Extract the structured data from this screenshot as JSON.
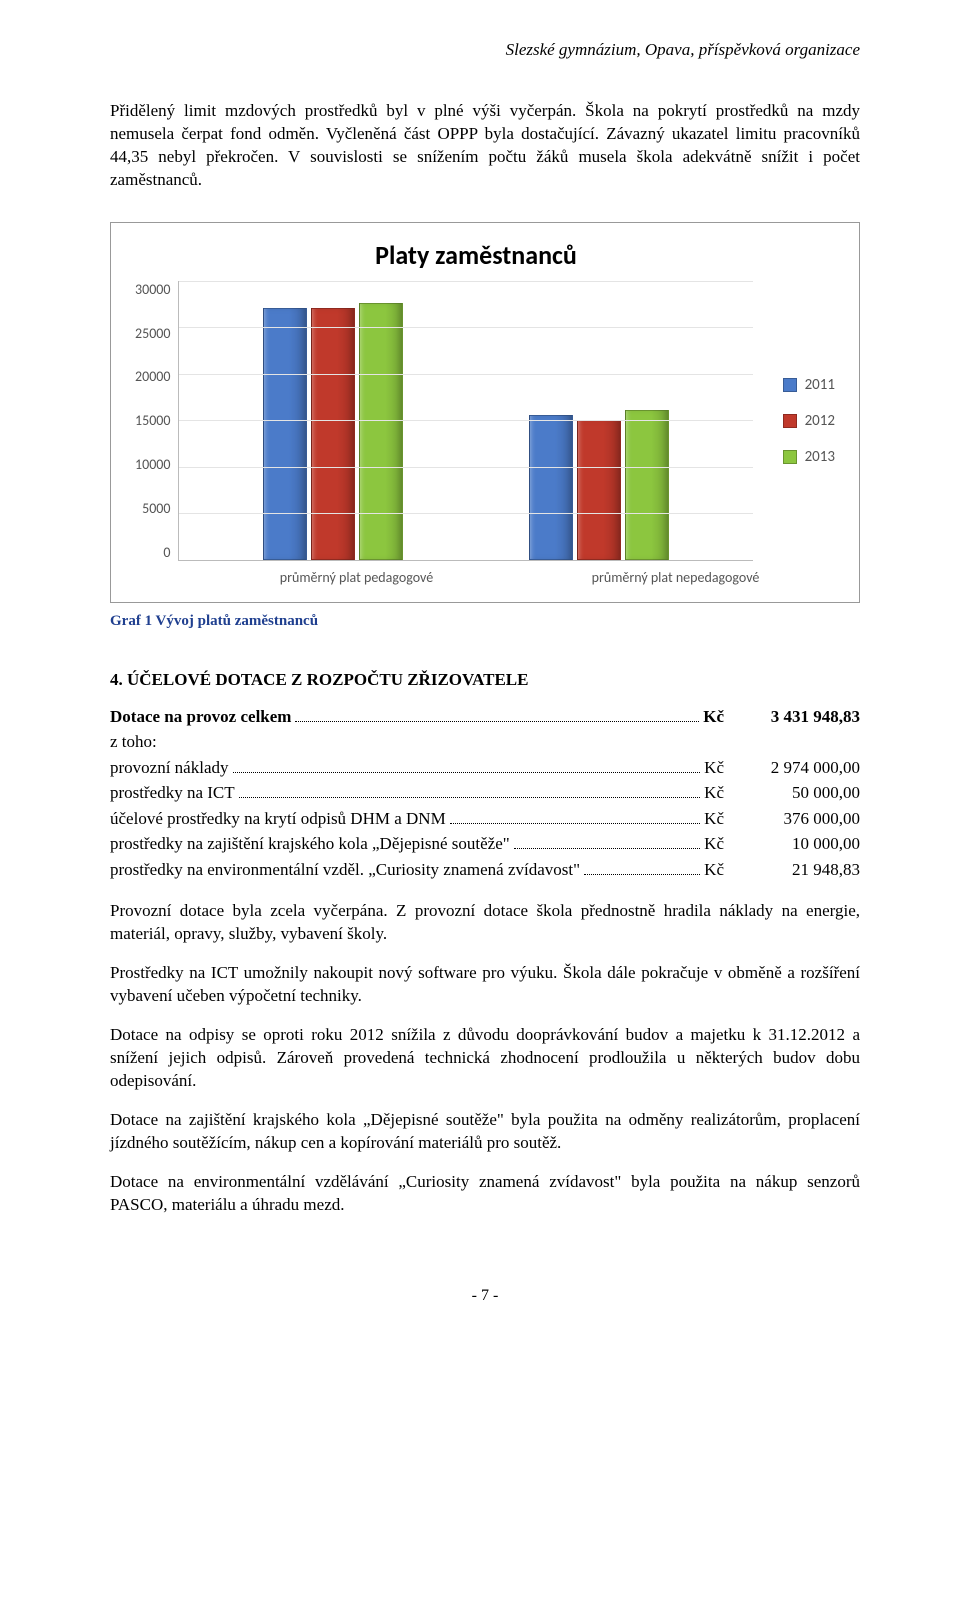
{
  "header": "Slezské gymnázium, Opava, příspěvková organizace",
  "para1": "Přidělený limit mzdových prostředků byl v plné výši vyčerpán. Škola na pokrytí prostředků na mzdy nemusela čerpat fond odměn. Vyčleněná část OPPP byla dostačující. Závazný ukazatel limitu pracovníků 44,35 nebyl překročen. V souvislosti se snížením počtu žáků musela škola adekvátně snížit i počet zaměstnanců.",
  "chart": {
    "title": "Platy zaměstnanců",
    "y_ticks": [
      "30000",
      "25000",
      "20000",
      "15000",
      "10000",
      "5000",
      "0"
    ],
    "y_max": 30000,
    "x_labels": [
      "průměrný plat pedagogové",
      "průměrný plat nepedagogové"
    ],
    "series": [
      {
        "label": "2011",
        "color": "#4b7bc9",
        "values": [
          27000,
          15500
        ]
      },
      {
        "label": "2012",
        "color": "#c0392b",
        "values": [
          27000,
          15000
        ]
      },
      {
        "label": "2013",
        "color": "#8cc63f",
        "values": [
          27500,
          16000
        ]
      }
    ],
    "grid_color": "#e4e4e4",
    "axis_color": "#bbbbbb"
  },
  "caption": "Graf 1 Vývoj platů zaměstnanců",
  "section4_heading": "4. ÚČELOVÉ DOTACE Z ROZPOČTU ZŘIZOVATELE",
  "rows": [
    {
      "label": "Dotace na provoz celkem",
      "unit": "Kč",
      "amount": "3 431 948,83",
      "bold": true
    },
    {
      "label": "z toho:",
      "plain": true
    },
    {
      "label": "provozní náklady",
      "unit": "Kč",
      "amount": "2 974 000,00"
    },
    {
      "label": "prostředky na ICT",
      "unit": "Kč",
      "amount": "50 000,00"
    },
    {
      "label": "účelové prostředky na krytí odpisů DHM a DNM",
      "unit": "Kč",
      "amount": "376 000,00"
    },
    {
      "label": "prostředky na zajištění krajského kola „Dějepisné soutěže\"",
      "unit": "Kč",
      "amount": "10 000,00"
    },
    {
      "label": "prostředky na environmentální vzděl. „Curiosity znamená zvídavost\"",
      "unit": "Kč",
      "amount": "21 948,83"
    }
  ],
  "para2": "Provozní dotace byla zcela vyčerpána. Z provozní dotace škola přednostně hradila náklady na energie, materiál, opravy, služby, vybavení školy.",
  "para3": "Prostředky na ICT umožnily nakoupit nový software pro výuku. Škola dále pokračuje v obměně a rozšíření vybavení učeben výpočetní techniky.",
  "para4": "Dotace na odpisy se oproti roku 2012 snížila z důvodu dooprávkování budov a majetku k 31.12.2012 a snížení jejich odpisů. Zároveň provedená technická zhodnocení prodloužila u některých budov dobu odepisování.",
  "para5": "Dotace na zajištění krajského kola „Dějepisné soutěže\" byla použita na odměny realizátorům, proplacení jízdného soutěžícím, nákup cen a kopírování materiálů pro soutěž.",
  "para6": "Dotace na environmentální vzdělávání „Curiosity znamená zvídavost\" byla použita na nákup senzorů PASCO, materiálu a úhradu mezd.",
  "page_num": "- 7 -"
}
